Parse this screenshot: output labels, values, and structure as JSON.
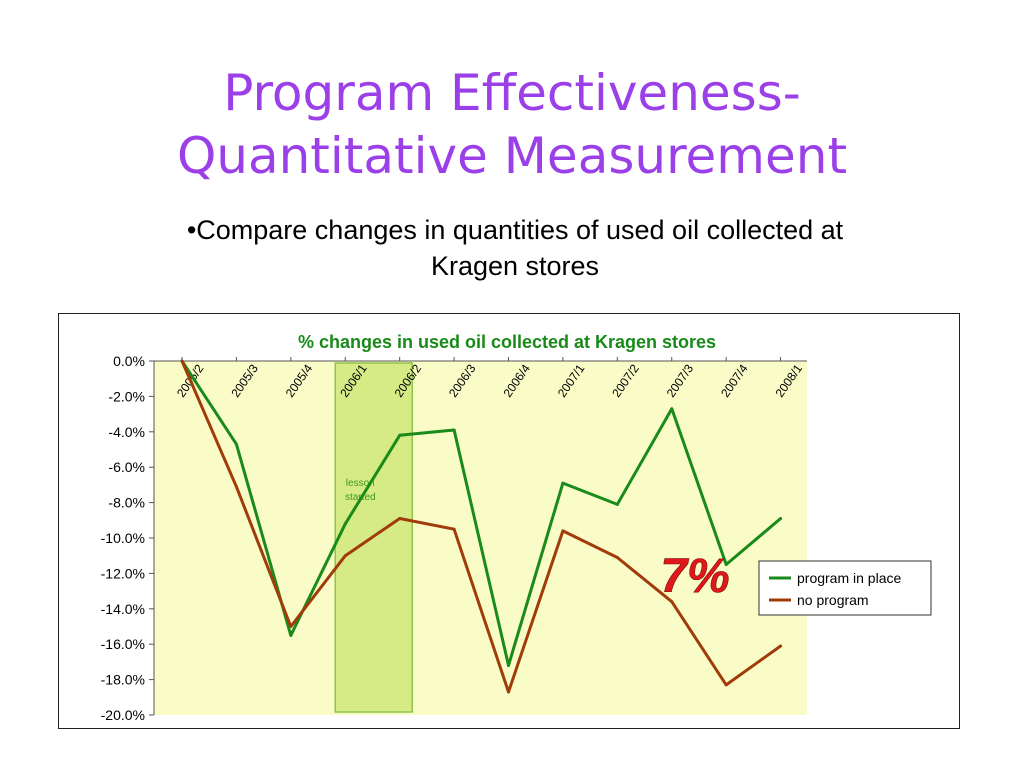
{
  "slide": {
    "title_line1": "Program Effectiveness-",
    "title_line2": "Quantitative Measurement",
    "bullet": "•Compare changes in quantities of used oil collected at Kragen stores"
  },
  "chart_data": {
    "type": "line",
    "title": "% changes in used oil collected at Kragen stores",
    "categories": [
      "2005/2",
      "2005/3",
      "2005/4",
      "2006/1",
      "2006/2",
      "2006/3",
      "2006/4",
      "2007/1",
      "2007/2",
      "2007/3",
      "2007/4",
      "2008/1"
    ],
    "series": [
      {
        "name": "program in place",
        "color": "#1a8a1a",
        "values": [
          0.0,
          -4.7,
          -15.5,
          -9.2,
          -4.2,
          -3.9,
          -17.2,
          -6.9,
          -8.1,
          -2.7,
          -11.5,
          -8.9
        ]
      },
      {
        "name": "no program",
        "color": "#a03c0a",
        "values": [
          0.0,
          -7.1,
          -15.0,
          -11.0,
          -8.9,
          -9.5,
          -18.7,
          -9.6,
          -11.1,
          -13.6,
          -18.3,
          -16.1
        ]
      }
    ],
    "y_ticks": [
      "0.0%",
      "-2.0%",
      "-4.0%",
      "-6.0%",
      "-8.0%",
      "-10.0%",
      "-12.0%",
      "-14.0%",
      "-16.0%",
      "-18.0%",
      "-20.0%"
    ],
    "ylim": [
      -20,
      0
    ],
    "plot_background": "#fafcc8",
    "title_color": "#188a18",
    "grid": false,
    "legend_position": "right",
    "highlight": {
      "label_line1": "lesson",
      "label_line2": "started",
      "from_category": 3,
      "color": "#cfe87a",
      "border": "#8ec44a"
    },
    "annotation": {
      "text": "7%",
      "color": "#e0181a"
    }
  }
}
